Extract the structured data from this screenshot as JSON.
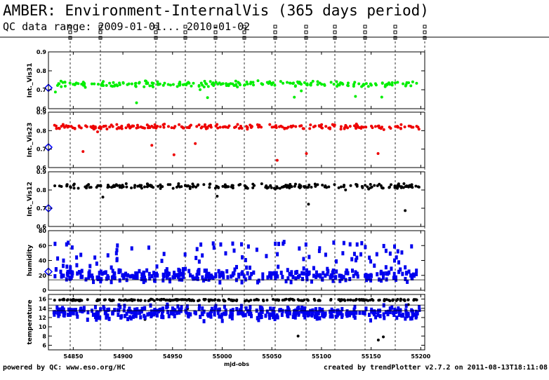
{
  "title": "AMBER: Environment-InternalVis (365 days period)",
  "subtitle": "QC data range: 2009-01-01... 2010-01-02",
  "footer_left": "powered by QC: www.eso.org/HC",
  "footer_right": "created by trendPlotter v2.7.2 on 2011-08-13T18:11:08",
  "colors": {
    "green": "#00ee00",
    "red": "#ee0000",
    "black": "#000000",
    "blue": "#0000ee",
    "diamond": "#0000ff"
  },
  "chart_data": [
    {
      "type": "scatter",
      "ylabel": "Int._Vis31",
      "ylim": [
        0.6,
        0.9
      ],
      "yticks": [
        "0.6",
        "0.7",
        "0.8",
        "0.9"
      ],
      "reference_value": 0.71,
      "series": [
        {
          "color": "green",
          "approx_level": 0.73,
          "spread": 0.02
        }
      ]
    },
    {
      "type": "scatter",
      "ylabel": "Int._Vis23",
      "ylim": [
        0.6,
        0.9
      ],
      "yticks": [
        "0.6",
        "0.7",
        "0.8",
        "0.9"
      ],
      "reference_value": 0.71,
      "series": [
        {
          "color": "red",
          "approx_level": 0.82,
          "spread": 0.02
        }
      ]
    },
    {
      "type": "scatter",
      "ylabel": "Int._Vis12",
      "ylim": [
        0.6,
        0.9
      ],
      "yticks": [
        "0.6",
        "0.7",
        "0.8",
        "0.9"
      ],
      "reference_value": 0.7,
      "series": [
        {
          "color": "black",
          "approx_level": 0.82,
          "spread": 0.02
        }
      ]
    },
    {
      "type": "scatter",
      "ylabel": "humidity",
      "ylim": [
        0,
        80
      ],
      "yticks": [
        "0",
        "20",
        "40",
        "60",
        "80"
      ],
      "reference_value": 25,
      "reference_line": 14,
      "series": [
        {
          "color": "blue",
          "approx_level": 20,
          "spread": 12
        }
      ]
    },
    {
      "type": "scatter",
      "ylabel": "temperature",
      "ylim": [
        5,
        17
      ],
      "yticks": [
        "6",
        "8",
        "10",
        "12",
        "14",
        "16"
      ],
      "reference_lines": [
        13.5,
        14.7
      ],
      "series": [
        {
          "color": "black",
          "approx_level": 15.8,
          "spread": 0.3
        },
        {
          "color": "blue",
          "approx_level": 13,
          "spread": 2
        }
      ]
    }
  ],
  "xaxis": {
    "label": "mjd-obs",
    "range": [
      54825,
      55204
    ],
    "ticks": [
      "54850",
      "54900",
      "54950",
      "55000",
      "55050",
      "55100",
      "55150",
      "55200"
    ]
  }
}
